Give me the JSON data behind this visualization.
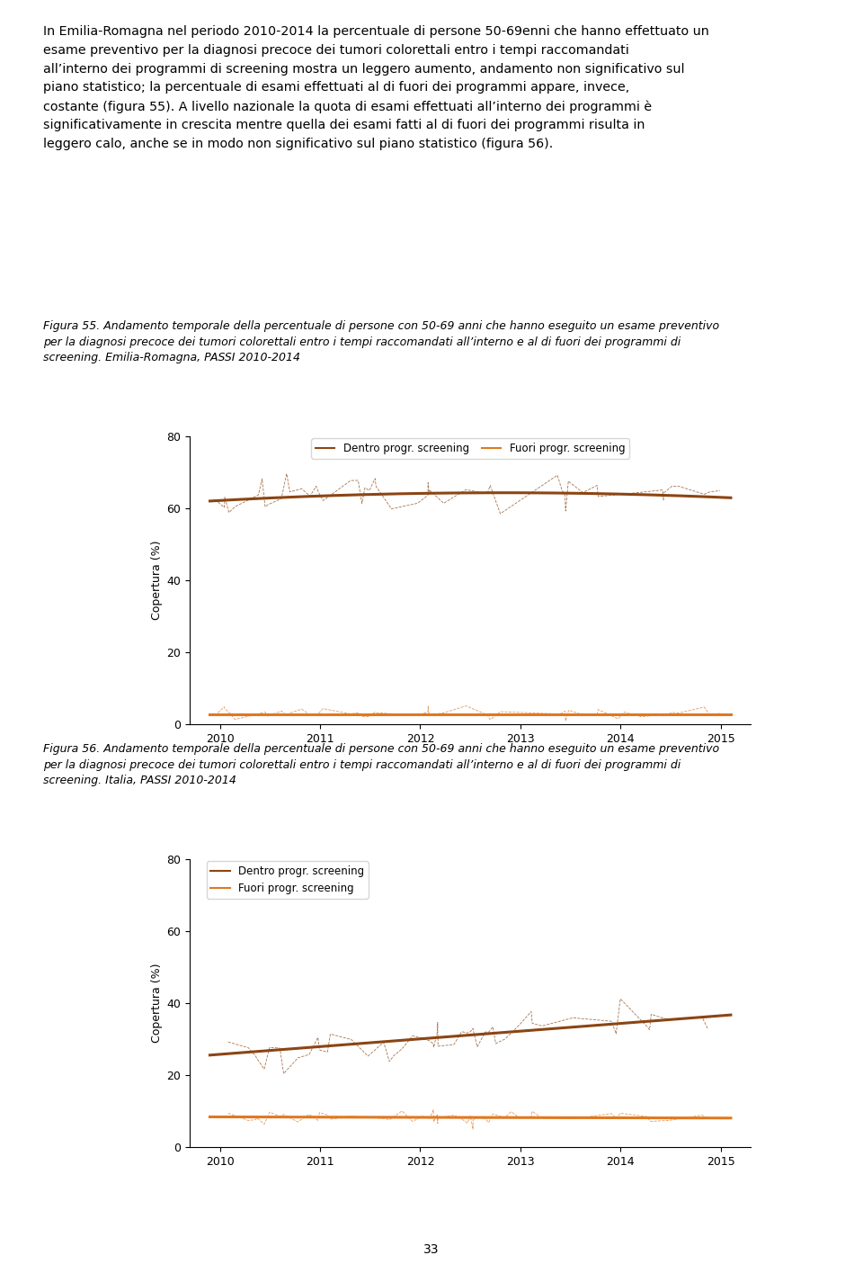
{
  "paragraph_text": "In Emilia-Romagna nel periodo 2010-2014 la percentuale di persone 50-69enni che hanno effettuato un esame preventivo per la diagnosi precoce dei tumori colorettali entro i tempi raccomandati all’interno dei programmi di screening mostra un leggero aumento, andamento non significativo sul piano statistico; la percentuale di esami effettuati al di fuori dei programmi appare, invece, costante (figura 55). A livello nazionale la quota di esami effettuati all’interno dei programmi è significativamente in crescita mentre quella dei esami fatti al di fuori dei programmi risulta in leggero calo, anche se in modo non significativo sul piano statistico (figura 56).",
  "fig55_caption_line1": "Figura 55. Andamento temporale della percentuale di persone con 50-69 anni che hanno eseguito un esame preventivo",
  "fig55_caption_line2": "per la diagnosi precoce dei tumori colorettali entro i tempi raccomandati all’interno e al di fuori dei programmi di",
  "fig55_caption_line3": "screening. Emilia-Romagna, PASSI 2010-2014",
  "fig56_caption_line1": "Figura 56. Andamento temporale della percentuale di persone con 50-69 anni che hanno eseguito un esame preventivo",
  "fig56_caption_line2": "per la diagnosi precoce dei tumori colorettali entro i tempi raccomandati all’interno e al di fuori dei programmi di",
  "fig56_caption_line3": "screening. Italia, PASSI 2010-2014",
  "ylabel": "Copertura (%)",
  "ylim": [
    0,
    80
  ],
  "yticks": [
    0,
    20,
    40,
    60,
    80
  ],
  "xlim": [
    2009.7,
    2015.3
  ],
  "xticks": [
    2010,
    2011,
    2012,
    2013,
    2014,
    2015
  ],
  "dentro_color": "#8B4513",
  "fuori_color": "#E07820",
  "dentro_label": "Dentro progr. screening",
  "fuori_label": "Fuori progr. screening",
  "page_number": "33",
  "fig55_dentro_trend": [
    62.0,
    63.5,
    64.0,
    64.2,
    63.8,
    63.0
  ],
  "fig55_fuori_trend": [
    2.8,
    2.8,
    2.9,
    2.9,
    2.8,
    2.8
  ],
  "fig56_dentro_trend": [
    26.0,
    28.0,
    30.0,
    32.0,
    34.0,
    37.0
  ],
  "fig56_fuori_trend": [
    8.5,
    8.4,
    8.3,
    8.2,
    8.2,
    8.2
  ]
}
